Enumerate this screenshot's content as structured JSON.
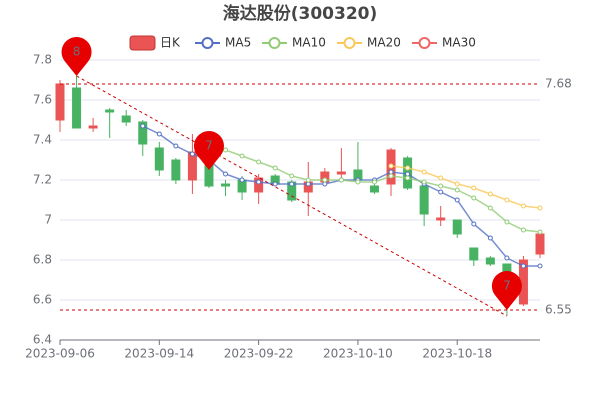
{
  "chart_data": {
    "type": "candlestick",
    "title": "海达股份(300320)",
    "categories": [
      "2023-09-06",
      null,
      null,
      null,
      null,
      null,
      "2023-09-14",
      null,
      null,
      null,
      null,
      null,
      "2023-09-22",
      null,
      null,
      null,
      null,
      null,
      "2023-10-10",
      null,
      null,
      null,
      null,
      null,
      "2023-10-18",
      null,
      null,
      null,
      null,
      null
    ],
    "series": [
      {
        "name": "日K",
        "type": "candlestick",
        "color_up": "#eb5454",
        "color_down": "#47b262",
        "open": [
          7.5,
          7.66,
          7.46,
          7.55,
          7.52,
          7.49,
          7.36,
          7.3,
          7.2,
          7.4,
          7.18,
          7.2,
          7.14,
          7.22,
          7.19,
          7.14,
          7.19,
          7.23,
          7.25,
          7.17,
          7.18,
          7.31,
          7.17,
          7.0,
          7.0,
          6.86,
          6.81,
          6.78,
          6.58,
          6.83
        ],
        "close": [
          7.68,
          7.46,
          7.47,
          7.54,
          7.49,
          7.38,
          7.25,
          7.2,
          7.34,
          7.17,
          7.17,
          7.14,
          7.21,
          7.18,
          7.1,
          7.19,
          7.24,
          7.24,
          7.2,
          7.14,
          7.35,
          7.16,
          7.03,
          7.01,
          6.93,
          6.8,
          6.78,
          6.72,
          6.8,
          6.93
        ],
        "low": [
          7.44,
          7.46,
          7.44,
          7.41,
          7.47,
          7.32,
          7.22,
          7.18,
          7.13,
          7.16,
          7.12,
          7.1,
          7.08,
          7.17,
          7.09,
          7.02,
          7.18,
          7.2,
          7.19,
          7.13,
          7.12,
          7.15,
          6.97,
          6.97,
          6.91,
          6.77,
          6.77,
          6.52,
          6.57,
          6.81
        ],
        "high": [
          7.7,
          7.72,
          7.51,
          7.56,
          7.55,
          7.5,
          7.39,
          7.31,
          7.43,
          7.4,
          7.2,
          7.22,
          7.23,
          7.23,
          7.2,
          7.29,
          7.26,
          7.36,
          7.39,
          7.2,
          7.36,
          7.32,
          7.18,
          7.07,
          7.0,
          6.86,
          6.82,
          6.78,
          6.82,
          6.95
        ]
      },
      {
        "name": "MA5",
        "type": "line",
        "color": "#5470c6",
        "values": [
          null,
          null,
          null,
          null,
          null,
          7.47,
          7.43,
          7.37,
          7.33,
          7.3,
          7.23,
          7.2,
          7.19,
          7.18,
          7.18,
          7.18,
          7.18,
          7.2,
          7.2,
          7.2,
          7.24,
          7.23,
          7.18,
          7.14,
          7.1,
          6.98,
          6.91,
          6.81,
          6.77,
          6.77
        ]
      },
      {
        "name": "MA10",
        "type": "line",
        "color": "#91cc75",
        "values": [
          null,
          null,
          null,
          null,
          null,
          null,
          null,
          null,
          null,
          7.37,
          7.35,
          7.32,
          7.29,
          7.26,
          7.22,
          7.2,
          7.2,
          7.2,
          7.19,
          7.19,
          7.22,
          7.21,
          7.19,
          7.17,
          7.15,
          7.11,
          7.06,
          6.99,
          6.95,
          6.94
        ]
      },
      {
        "name": "MA20",
        "type": "line",
        "color": "#fac858",
        "values": [
          null,
          null,
          null,
          null,
          null,
          null,
          null,
          null,
          null,
          null,
          null,
          null,
          null,
          null,
          null,
          null,
          null,
          null,
          null,
          null,
          7.27,
          7.26,
          7.24,
          7.21,
          7.18,
          7.16,
          7.13,
          7.1,
          7.07,
          7.06
        ]
      },
      {
        "name": "MA30",
        "type": "line",
        "color": "#ee6666",
        "values": [
          null,
          null,
          null,
          null,
          null,
          null,
          null,
          null,
          null,
          null,
          null,
          null,
          null,
          null,
          null,
          null,
          null,
          null,
          null,
          null,
          null,
          null,
          null,
          null,
          null,
          null,
          null,
          null,
          null,
          null
        ]
      }
    ],
    "ylim": [
      6.4,
      7.8
    ],
    "yticks": [
      6.4,
      6.6,
      6.8,
      7,
      7.2,
      7.4,
      7.6,
      7.8
    ],
    "grid": true,
    "mark_lines": [
      7.68,
      6.55
    ],
    "mark_line_color": "#cc0000",
    "mark_points": [
      {
        "index": 1,
        "value": 7.72,
        "label": "8"
      },
      {
        "index": 9,
        "value": 7.25,
        "label": "7"
      },
      {
        "index": 27,
        "value": 6.55,
        "label": "7"
      }
    ],
    "pin_color": "#e60000",
    "trend_line": {
      "from": [
        1,
        7.72
      ],
      "to": [
        27,
        6.52
      ]
    }
  }
}
